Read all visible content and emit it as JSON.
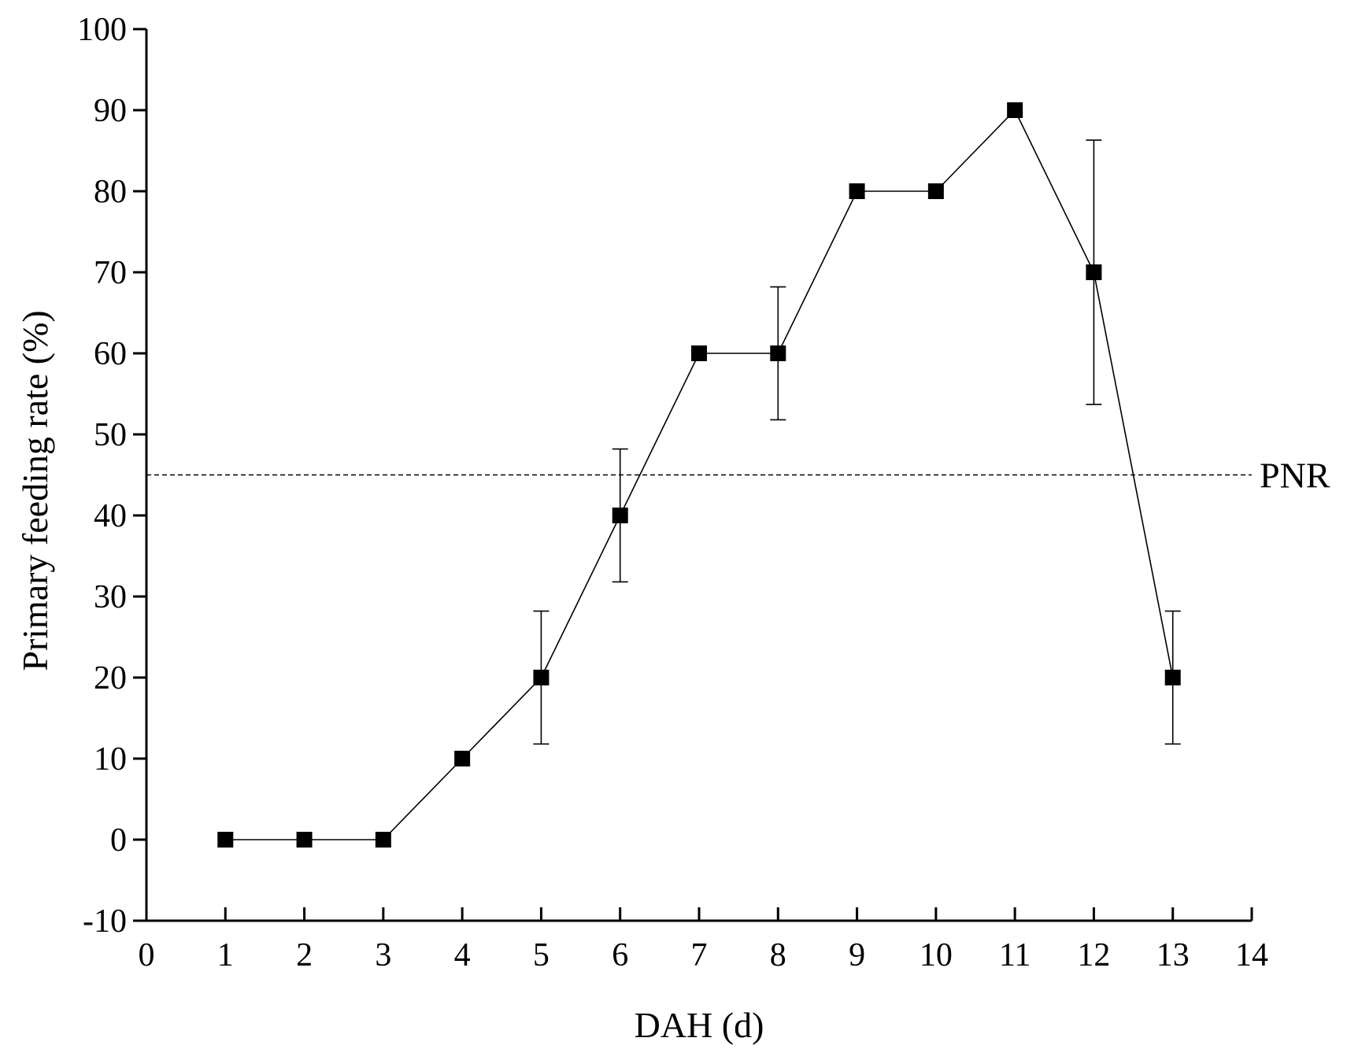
{
  "chart_data": {
    "type": "line",
    "title": "",
    "xlabel": "DAH (d)",
    "ylabel": "Primary feeding rate (%)",
    "xlim": [
      0,
      14
    ],
    "ylim": [
      -10,
      100
    ],
    "x_ticks": [
      0,
      1,
      2,
      3,
      4,
      5,
      6,
      7,
      8,
      9,
      10,
      11,
      12,
      13,
      14
    ],
    "y_ticks": [
      -10,
      0,
      10,
      20,
      30,
      40,
      50,
      60,
      70,
      80,
      90,
      100
    ],
    "x_tick_labels": [
      "0",
      "1",
      "2",
      "3",
      "4",
      "5",
      "6",
      "7",
      "8",
      "9",
      "10",
      "11",
      "12",
      "13",
      "14"
    ],
    "y_tick_labels": [
      "-10",
      "0",
      "10",
      "20",
      "30",
      "40",
      "50",
      "60",
      "70",
      "80",
      "90",
      "100"
    ],
    "grid": false,
    "legend": "none",
    "series": [
      {
        "marker": "square",
        "color": "#000000",
        "x": [
          1,
          2,
          3,
          4,
          5,
          6,
          7,
          8,
          9,
          10,
          11,
          12,
          13
        ],
        "y": [
          0,
          0,
          0,
          10,
          20,
          40,
          60,
          60,
          80,
          80,
          90,
          70,
          20
        ],
        "error": [
          0,
          0,
          0,
          0,
          8.2,
          8.2,
          0,
          8.2,
          0,
          0,
          0,
          16.3,
          8.2
        ]
      }
    ],
    "reference_line": {
      "label": "PNR",
      "y": 45,
      "style": "dashed"
    }
  }
}
